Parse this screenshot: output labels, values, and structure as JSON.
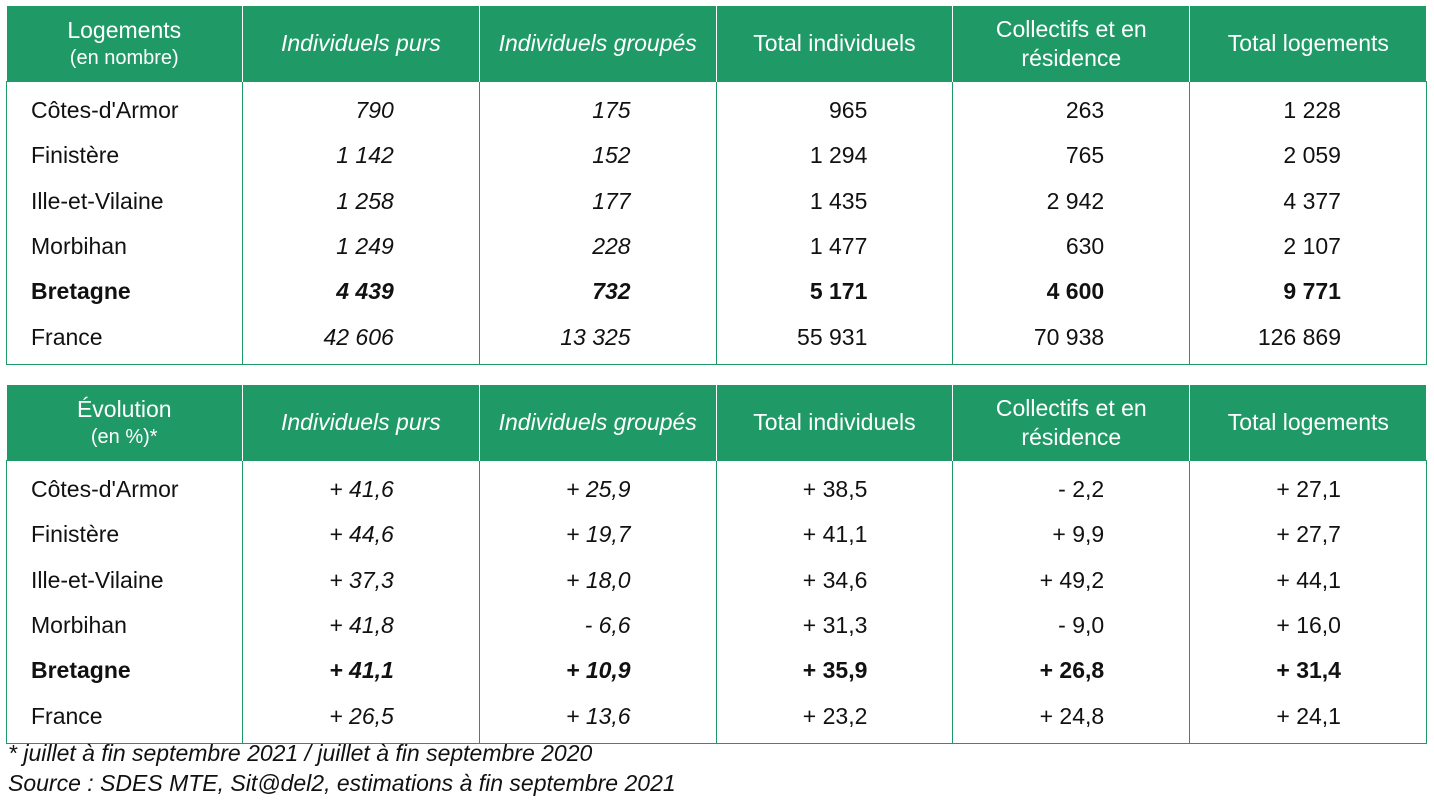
{
  "table_logements": {
    "header": {
      "title_line1": "Logements",
      "title_line2": "(en nombre)",
      "columns": [
        "Individuels purs",
        "Individuels groupés",
        "Total individuels",
        "Collectifs et en résidence",
        "Total logements"
      ]
    },
    "rows": [
      {
        "label": "Côtes-d'Armor",
        "values": [
          "790",
          "175",
          "965",
          "263",
          "1 228"
        ]
      },
      {
        "label": "Finistère",
        "values": [
          "1 142",
          "152",
          "1 294",
          "765",
          "2 059"
        ]
      },
      {
        "label": "Ille-et-Vilaine",
        "values": [
          "1 258",
          "177",
          "1 435",
          "2 942",
          "4 377"
        ]
      },
      {
        "label": "Morbihan",
        "values": [
          "1 249",
          "228",
          "1 477",
          "630",
          "2 107"
        ]
      },
      {
        "label": "Bretagne",
        "values": [
          "4 439",
          "732",
          "5 171",
          "4 600",
          "9 771"
        ]
      },
      {
        "label": "France",
        "values": [
          "42 606",
          "13 325",
          "55 931",
          "70 938",
          "126 869"
        ]
      }
    ]
  },
  "table_evolution": {
    "header": {
      "title_line1": "Évolution",
      "title_line2": "(en %)*",
      "columns": [
        "Individuels purs",
        "Individuels groupés",
        "Total individuels",
        "Collectifs et en résidence",
        "Total logements"
      ]
    },
    "rows": [
      {
        "label": "Côtes-d'Armor",
        "values": [
          "+ 41,6",
          "+ 25,9",
          "+ 38,5",
          "- 2,2",
          "+ 27,1"
        ]
      },
      {
        "label": "Finistère",
        "values": [
          "+ 44,6",
          "+ 19,7",
          "+ 41,1",
          "+ 9,9",
          "+ 27,7"
        ]
      },
      {
        "label": "Ille-et-Vilaine",
        "values": [
          "+ 37,3",
          "+ 18,0",
          "+ 34,6",
          "+ 49,2",
          "+ 44,1"
        ]
      },
      {
        "label": "Morbihan",
        "values": [
          "+ 41,8",
          "- 6,6",
          "+ 31,3",
          "- 9,0",
          "+ 16,0"
        ]
      },
      {
        "label": "Bretagne",
        "values": [
          "+ 41,1",
          "+ 10,9",
          "+ 35,9",
          "+ 26,8",
          "+ 31,4"
        ]
      },
      {
        "label": "France",
        "values": [
          "+ 26,5",
          "+ 13,6",
          "+ 23,2",
          "+ 24,8",
          "+ 24,1"
        ]
      }
    ]
  },
  "footnotes": {
    "note": "* juillet à fin septembre 2021 / juillet à fin septembre 2020",
    "source": "Source : SDES MTE, Sit@del2, estimations à fin septembre 2021"
  },
  "colors": {
    "header_background": "#1f9a66",
    "header_text": "#ffffff",
    "border": "#1f9a66"
  }
}
